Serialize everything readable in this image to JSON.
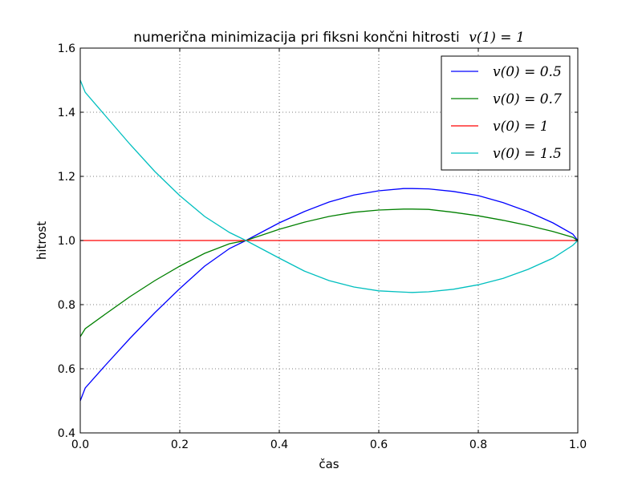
{
  "chart_data": {
    "type": "line",
    "title": "numerična minimizacija pri fiksni končni hitrosti",
    "title_math": "v(1) = 1",
    "xlabel": "čas",
    "ylabel": "hitrost",
    "xlim": [
      0.0,
      1.0
    ],
    "ylim": [
      0.4,
      1.6
    ],
    "xticks": [
      "0.0",
      "0.2",
      "0.4",
      "0.6",
      "0.8",
      "1.0"
    ],
    "yticks": [
      "0.4",
      "0.6",
      "0.8",
      "1.0",
      "1.2",
      "1.4",
      "1.6"
    ],
    "grid": true,
    "legend_position": "top-right",
    "series": [
      {
        "name": "v(0) = 0.5",
        "color": "#0000ff",
        "x": [
          0.0,
          0.01,
          0.05,
          0.1,
          0.15,
          0.2,
          0.25,
          0.3,
          0.333,
          0.4,
          0.45,
          0.5,
          0.55,
          0.6,
          0.65,
          0.667,
          0.7,
          0.75,
          0.8,
          0.85,
          0.9,
          0.95,
          0.99,
          1.0
        ],
        "y": [
          0.5,
          0.54,
          0.61,
          0.695,
          0.775,
          0.85,
          0.92,
          0.975,
          1.0,
          1.055,
          1.09,
          1.12,
          1.142,
          1.155,
          1.162,
          1.162,
          1.161,
          1.153,
          1.14,
          1.118,
          1.09,
          1.055,
          1.02,
          1.0
        ]
      },
      {
        "name": "v(0) = 0.7",
        "color": "#008000",
        "x": [
          0.0,
          0.01,
          0.05,
          0.1,
          0.15,
          0.2,
          0.25,
          0.3,
          0.333,
          0.4,
          0.45,
          0.5,
          0.55,
          0.6,
          0.65,
          0.667,
          0.7,
          0.75,
          0.8,
          0.85,
          0.9,
          0.95,
          0.99,
          1.0
        ],
        "y": [
          0.7,
          0.725,
          0.77,
          0.825,
          0.875,
          0.92,
          0.96,
          0.99,
          1.0,
          1.035,
          1.057,
          1.075,
          1.088,
          1.095,
          1.098,
          1.098,
          1.097,
          1.088,
          1.077,
          1.063,
          1.047,
          1.028,
          1.01,
          1.0
        ]
      },
      {
        "name": "v(0) = 1",
        "color": "#ff0000",
        "x": [
          0.0,
          1.0
        ],
        "y": [
          1.0,
          1.0
        ]
      },
      {
        "name": "v(0) = 1.5",
        "color": "#00bfbf",
        "x": [
          0.0,
          0.01,
          0.05,
          0.1,
          0.15,
          0.2,
          0.25,
          0.3,
          0.333,
          0.4,
          0.45,
          0.5,
          0.55,
          0.6,
          0.65,
          0.667,
          0.7,
          0.75,
          0.8,
          0.85,
          0.9,
          0.95,
          0.99,
          1.0
        ],
        "y": [
          1.5,
          1.462,
          1.39,
          1.3,
          1.215,
          1.14,
          1.075,
          1.025,
          1.0,
          0.945,
          0.905,
          0.875,
          0.855,
          0.843,
          0.839,
          0.838,
          0.84,
          0.848,
          0.862,
          0.882,
          0.91,
          0.945,
          0.985,
          1.0
        ]
      }
    ]
  }
}
